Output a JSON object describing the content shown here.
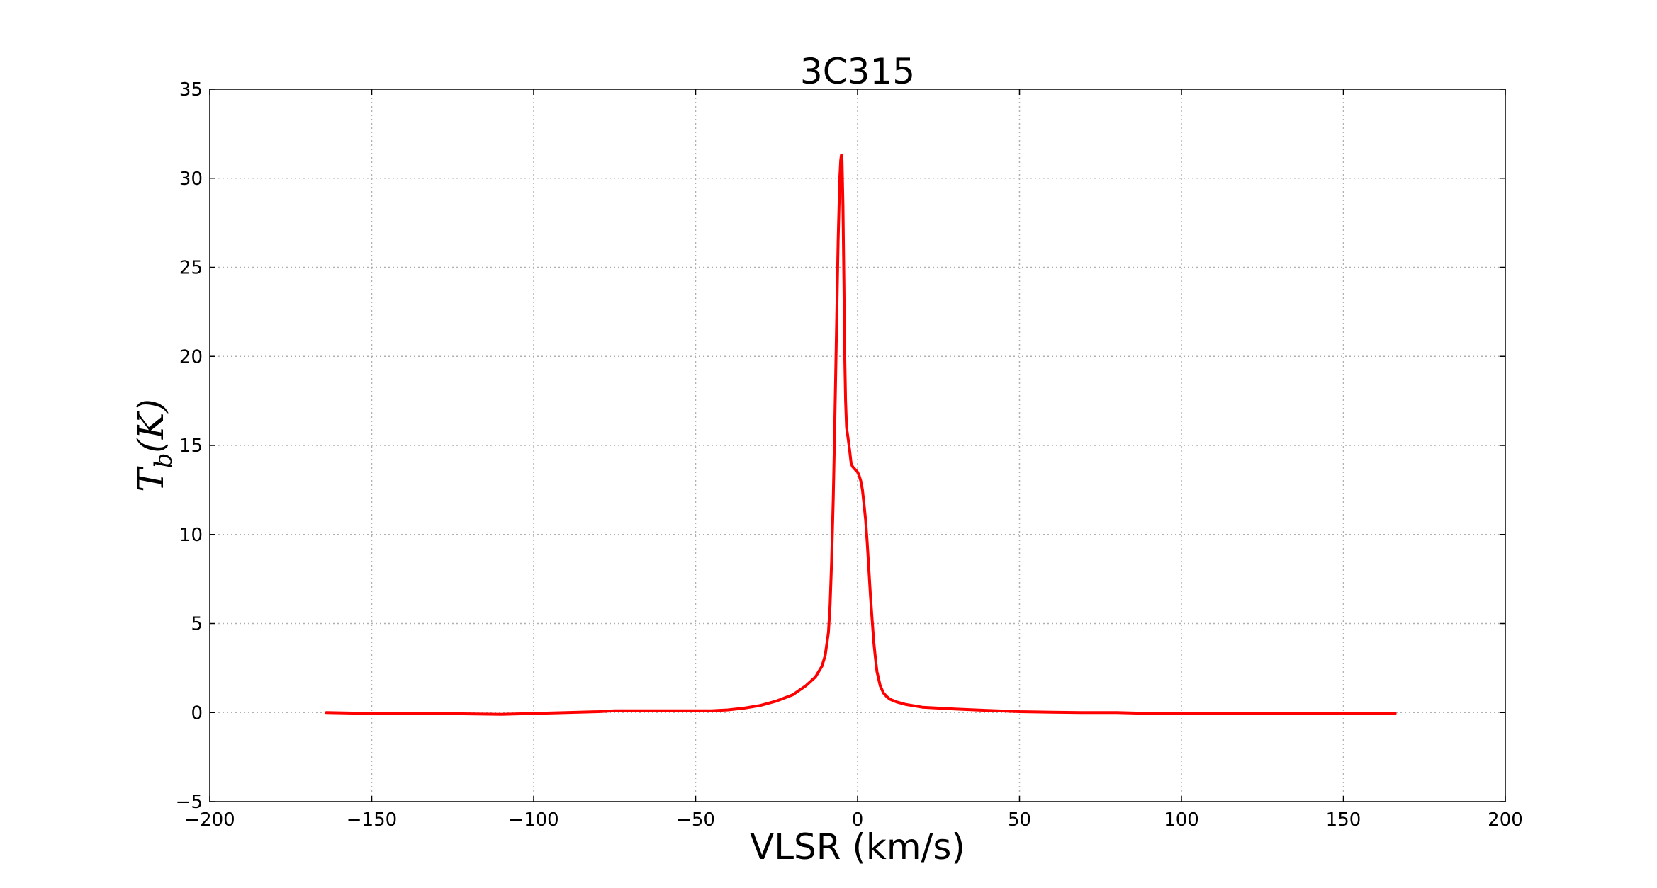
{
  "chart_data": {
    "type": "line",
    "title": "3C315",
    "xlabel": "VLSR (km/s)",
    "ylabel": {
      "main": "T",
      "subscript": "b",
      "rest": "(K)"
    },
    "xlim": [
      -200,
      200
    ],
    "ylim": [
      -5,
      35
    ],
    "xticks": [
      -200,
      -150,
      -100,
      -50,
      0,
      50,
      100,
      150,
      200
    ],
    "xtick_labels": [
      "−200",
      "−150",
      "−100",
      "−50",
      "0",
      "50",
      "100",
      "150",
      "200"
    ],
    "yticks": [
      -5,
      0,
      5,
      10,
      15,
      20,
      25,
      30,
      35
    ],
    "ytick_labels": [
      "−5",
      "0",
      "5",
      "10",
      "15",
      "20",
      "25",
      "30",
      "35"
    ],
    "grid": true,
    "line_color": "#ff0000",
    "series": [
      {
        "x": [
          -164,
          -150,
          -130,
          -110,
          -100,
          -90,
          -80,
          -75,
          -70,
          -60,
          -50,
          -45,
          -40,
          -35,
          -30,
          -25,
          -20,
          -16,
          -13,
          -11,
          -10,
          -9,
          -8.5,
          -8,
          -7.5,
          -7,
          -6.5,
          -6,
          -5.5,
          -5.2,
          -5,
          -4.8,
          -4.5,
          -4.2,
          -4,
          -3.7,
          -3.4,
          -3,
          -2.5,
          -2,
          -1.5,
          -1,
          0,
          0.5,
          1,
          1.5,
          2,
          2.5,
          3,
          3.5,
          4,
          4.5,
          5,
          5.5,
          6,
          7,
          8,
          9,
          10,
          12,
          15,
          20,
          30,
          40,
          50,
          60,
          70,
          80,
          90,
          100,
          110,
          120,
          130,
          140,
          150,
          160,
          166
        ],
        "y": [
          0.0,
          -0.05,
          -0.05,
          -0.1,
          -0.05,
          0.0,
          0.05,
          0.1,
          0.1,
          0.1,
          0.1,
          0.1,
          0.15,
          0.25,
          0.4,
          0.65,
          1.0,
          1.5,
          2.0,
          2.6,
          3.2,
          4.5,
          6.0,
          8.5,
          12.0,
          16.5,
          21.5,
          26.5,
          30.0,
          31.0,
          31.3,
          31.0,
          28.5,
          24.0,
          20.5,
          17.5,
          16.0,
          15.5,
          14.8,
          14.0,
          13.8,
          13.7,
          13.5,
          13.3,
          13.0,
          12.5,
          11.7,
          10.8,
          9.5,
          8.0,
          6.5,
          5.2,
          4.0,
          3.1,
          2.3,
          1.5,
          1.1,
          0.9,
          0.75,
          0.6,
          0.45,
          0.3,
          0.2,
          0.12,
          0.05,
          0.02,
          0.0,
          0.0,
          -0.05,
          -0.05,
          -0.05,
          -0.05,
          -0.05,
          -0.05,
          -0.05,
          -0.05,
          -0.05
        ]
      }
    ]
  }
}
